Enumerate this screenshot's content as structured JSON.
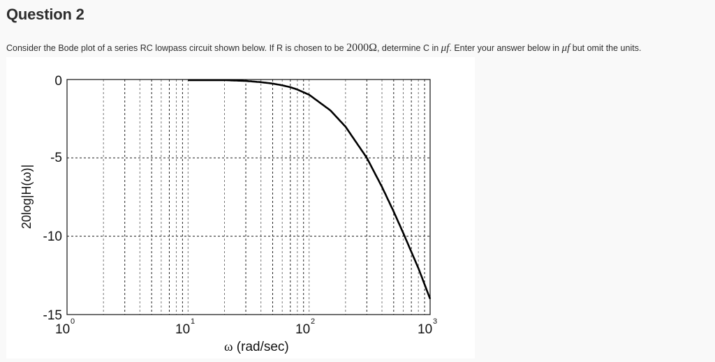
{
  "question": {
    "title": "Question 2",
    "text_part1": "Consider the Bode plot of a series RC lowpass circuit shown below. If R is chosen to be ",
    "resistance": "2000Ω",
    "text_part2": ", determine C in ",
    "unit1": "μf",
    "text_part3": ". Enter your answer below in ",
    "unit2": "μf",
    "text_part4": " but omit the units."
  },
  "chart_data": {
    "type": "line",
    "title": "",
    "xlabel": "ω (rad/sec)",
    "ylabel": "20log|H(ω)|",
    "xscale": "log",
    "xlim": [
      1,
      1000
    ],
    "ylim": [
      -15,
      0
    ],
    "grid": true,
    "x_tick_labels": [
      "10^0",
      "10^1",
      "10^2",
      "10^3"
    ],
    "y_tick_labels": [
      "0",
      "-5",
      "-10",
      "-15"
    ],
    "series": [
      {
        "name": "20log|H(ω)|",
        "x": [
          1,
          10,
          20,
          30,
          40,
          50,
          60,
          70,
          80,
          100,
          150,
          200,
          300,
          400,
          500,
          600,
          700,
          800,
          1000
        ],
        "values": [
          0.0,
          -0.02,
          -0.04,
          -0.09,
          -0.17,
          -0.26,
          -0.37,
          -0.49,
          -0.64,
          -0.97,
          -1.97,
          -3.01,
          -5.0,
          -6.85,
          -8.43,
          -9.8,
          -11.0,
          -12.04,
          -14.0
        ]
      }
    ],
    "legend": null
  },
  "axis": {
    "y_ticks": [
      "0",
      "-5",
      "-10",
      "-15"
    ],
    "x_ticks": [
      {
        "base": "10",
        "exp": "0"
      },
      {
        "base": "10",
        "exp": "1"
      },
      {
        "base": "10",
        "exp": "2"
      },
      {
        "base": "10",
        "exp": "3"
      }
    ],
    "xlabel_omega": "ω",
    "xlabel_units": " (rad/sec)",
    "ylabel": "20log|H(ω)|"
  }
}
